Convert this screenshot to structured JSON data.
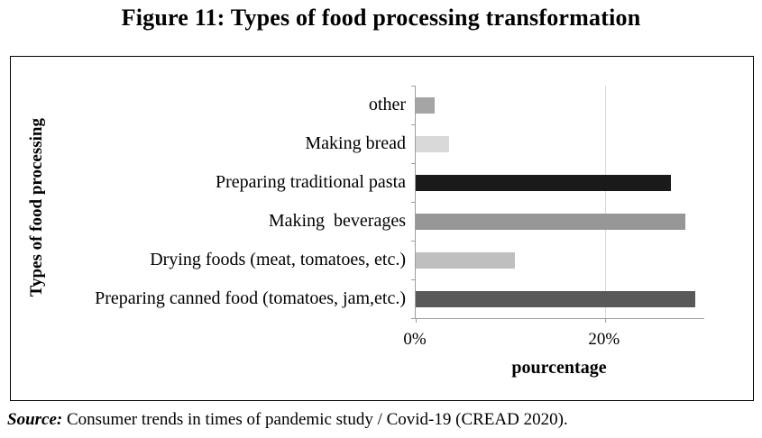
{
  "title": "Figure 11: Types of food processing transformation",
  "chart_data": {
    "type": "bar",
    "orientation": "horizontal",
    "title": "Figure 11: Types of food processing transformation",
    "categories": [
      "other",
      "Making bread",
      "Preparing traditional pasta",
      "Making  beverages",
      "Drying foods (meat, tomatoes, etc.)",
      "Preparing canned food (tomatoes, jam,etc.)"
    ],
    "values": [
      2,
      3.5,
      27,
      28.5,
      10.5,
      29.5
    ],
    "unit": "%",
    "bar_colors": [
      "#a5a5a5",
      "#d9d9d9",
      "#1a1a1a",
      "#969696",
      "#bfbfbf",
      "#595959"
    ],
    "xlabel": "pourcentage",
    "ylabel": "Types of food processing",
    "xlim": [
      0,
      30.5
    ],
    "x_ticks": [
      0,
      20
    ],
    "x_tick_labels": [
      "0%",
      "20%"
    ],
    "grid": "single vertical gridline at 20%",
    "legend": "none"
  },
  "source": {
    "label": "Source:",
    "text": " Consumer trends in times of pandemic study / Covid-19 (CREAD 2020)."
  },
  "colors": {
    "axis": "#9e9e9e",
    "gridline": "#d9d9d9",
    "frame": "#000000",
    "text": "#000000"
  }
}
